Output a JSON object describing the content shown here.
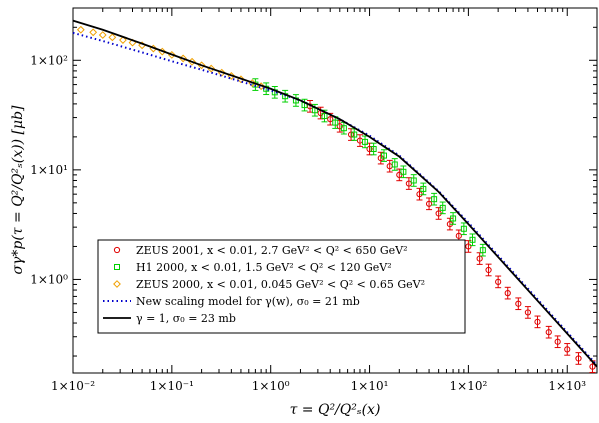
{
  "chart_data": {
    "type": "scatter",
    "xlabel": "τ = Q²/Q²ₛ(x)",
    "ylabel": "σγ*p(τ = Q²/Q²ₛ(x)) [μb]",
    "xscale": "log",
    "yscale": "log",
    "xlim": [
      0.01,
      2000
    ],
    "ylim": [
      0.14,
      300
    ],
    "x_ticks": [
      {
        "value": 0.01,
        "label": "1×10⁻²"
      },
      {
        "value": 0.1,
        "label": "1×10⁻¹"
      },
      {
        "value": 1,
        "label": "1×10⁰"
      },
      {
        "value": 10,
        "label": "1×10¹"
      },
      {
        "value": 100,
        "label": "1×10²"
      },
      {
        "value": 1000,
        "label": "1×10³"
      }
    ],
    "y_ticks": [
      {
        "value": 1,
        "label": "1×10⁰"
      },
      {
        "value": 10,
        "label": "1×10¹"
      },
      {
        "value": 100,
        "label": "1×10²"
      }
    ],
    "grid": false,
    "legend_position": "bottom-left",
    "series": [
      {
        "name": "ZEUS 2001, x < 0.01, 2.7 GeV² < Q² < 650 GeV²",
        "marker": "circle",
        "color": "#e00000",
        "error_bars": true,
        "x": [
          2.5,
          3.2,
          4,
          5,
          6.5,
          8,
          10,
          13,
          16,
          20,
          25,
          32,
          40,
          50,
          65,
          80,
          100,
          130,
          160,
          200,
          250,
          320,
          400,
          500,
          650,
          800,
          1000,
          1300,
          1800
        ],
        "y": [
          38,
          33,
          29,
          25,
          21,
          18.5,
          15.5,
          12.8,
          10.8,
          9.0,
          7.5,
          6.0,
          4.9,
          4.0,
          3.2,
          2.5,
          2.0,
          1.55,
          1.22,
          0.95,
          0.75,
          0.6,
          0.5,
          0.41,
          0.33,
          0.27,
          0.23,
          0.19,
          0.16
        ]
      },
      {
        "name": "H1 2000, x < 0.01, 1.5 GeV² < Q² < 120 GeV²",
        "marker": "square",
        "color": "#00d000",
        "error_bars": true,
        "x": [
          0.7,
          0.9,
          1.1,
          1.4,
          1.8,
          2.2,
          2.8,
          3.5,
          4.5,
          5.5,
          7,
          9,
          11,
          14,
          18,
          22,
          28,
          35,
          45,
          55,
          70,
          90,
          110,
          140
        ],
        "y": [
          60,
          55,
          51,
          47,
          43,
          39,
          35,
          31,
          27,
          24,
          21,
          18,
          15.5,
          13.5,
          11.2,
          9.6,
          8.0,
          6.7,
          5.4,
          4.5,
          3.6,
          2.9,
          2.3,
          1.85
        ]
      },
      {
        "name": "ZEUS 2000, x < 0.01, 0.045 GeV² < Q² < 0.65 GeV²",
        "marker": "diamond",
        "color": "#f0a000",
        "error_bars": false,
        "x": [
          0.012,
          0.016,
          0.02,
          0.025,
          0.032,
          0.04,
          0.05,
          0.065,
          0.08,
          0.1,
          0.13,
          0.16,
          0.2,
          0.25,
          0.32,
          0.4,
          0.5,
          0.65,
          0.8
        ],
        "y": [
          190,
          180,
          170,
          162,
          153,
          145,
          137,
          128,
          120,
          112,
          104,
          97,
          90,
          84,
          77,
          72,
          67,
          62,
          58
        ]
      },
      {
        "name": "New scaling model for γ(w), σ₀ = 21 mb",
        "style": "dotted",
        "color": "#0000cc",
        "x": [
          0.01,
          0.02,
          0.05,
          0.1,
          0.2,
          0.5,
          1,
          2,
          5,
          10,
          20,
          50,
          100,
          200,
          500,
          1000,
          2000
        ],
        "y": [
          178,
          150,
          118,
          98,
          82,
          64,
          53,
          43,
          29,
          20.5,
          13.5,
          6.4,
          3.3,
          1.65,
          0.66,
          0.33,
          0.165
        ]
      },
      {
        "name": "γ = 1, σ₀ = 23 mb",
        "style": "solid",
        "color": "#000000",
        "x": [
          0.01,
          0.02,
          0.05,
          0.1,
          0.2,
          0.5,
          1,
          2,
          5,
          10,
          20,
          50,
          100,
          200,
          500,
          1000,
          2000
        ],
        "y": [
          230,
          190,
          142,
          113,
          90,
          68,
          55,
          43,
          29,
          20,
          13.2,
          6.3,
          3.2,
          1.6,
          0.64,
          0.32,
          0.16
        ]
      }
    ]
  }
}
